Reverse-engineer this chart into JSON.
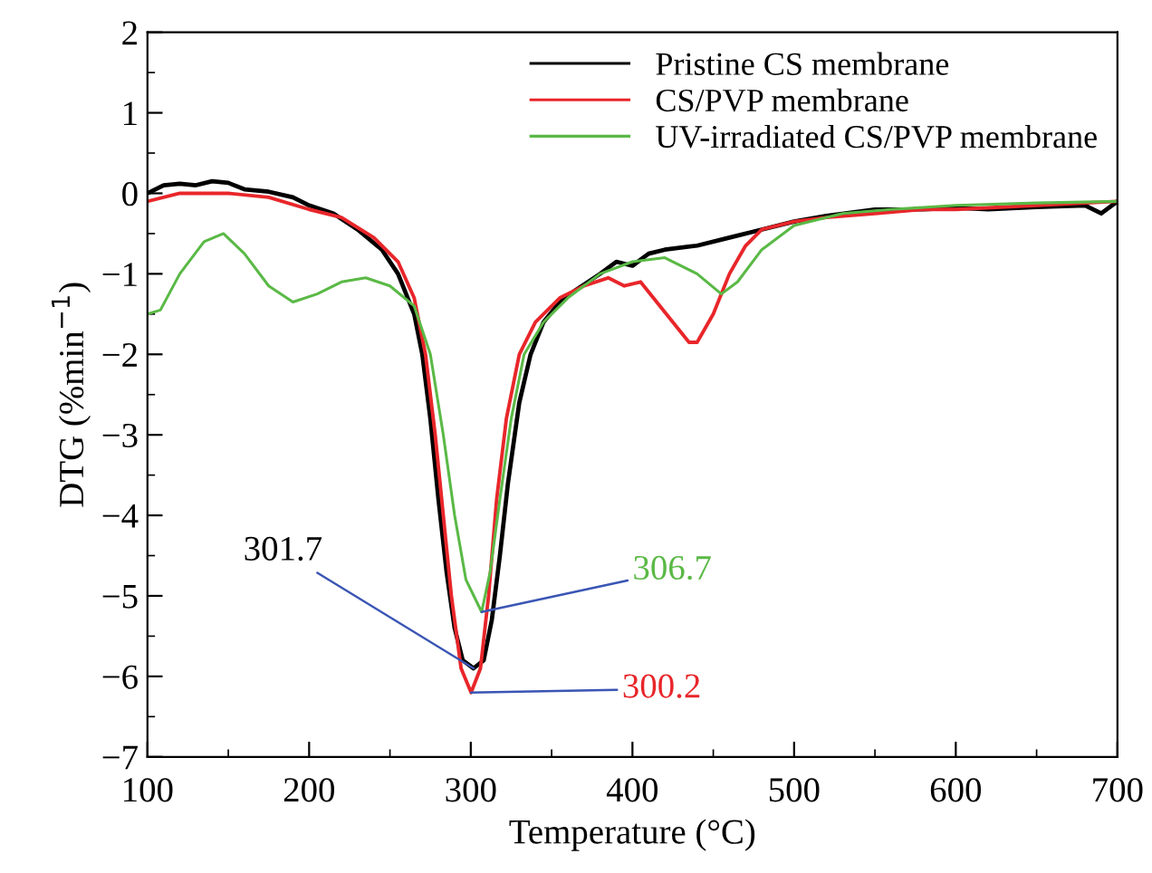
{
  "chart_data": {
    "type": "line",
    "xlabel": "Temperature (°C)",
    "ylabel": "DTG (%min$^{−1}$)",
    "xlim": [
      100,
      700
    ],
    "xticks": [
      100,
      200,
      300,
      400,
      500,
      600,
      700
    ],
    "ylim": [
      -7,
      2
    ],
    "yticks": [
      -7,
      -6,
      -5,
      -4,
      -3,
      -2,
      -1,
      0,
      1,
      2
    ],
    "grid": false,
    "legend": "top right",
    "marker": "none",
    "line_style": "solid",
    "series": [
      {
        "name": "Pristine CS membrane",
        "color": "#000000",
        "x": [
          100,
          110,
          120,
          130,
          140,
          150,
          160,
          175,
          190,
          200,
          215,
          230,
          245,
          255,
          265,
          270,
          275,
          280,
          285,
          290,
          295,
          301.7,
          308,
          313,
          318,
          323,
          330,
          337,
          345,
          355,
          365,
          380,
          390,
          400,
          410,
          420,
          440,
          460,
          480,
          500,
          520,
          550,
          580,
          600,
          620,
          650,
          680,
          690,
          700
        ],
        "values": [
          0.0,
          0.1,
          0.12,
          0.1,
          0.15,
          0.13,
          0.05,
          0.02,
          -0.05,
          -0.15,
          -0.25,
          -0.45,
          -0.7,
          -1.0,
          -1.5,
          -2.0,
          -2.8,
          -3.8,
          -4.7,
          -5.4,
          -5.8,
          -5.9,
          -5.8,
          -5.3,
          -4.5,
          -3.6,
          -2.6,
          -2.0,
          -1.6,
          -1.35,
          -1.2,
          -1.0,
          -0.85,
          -0.9,
          -0.75,
          -0.7,
          -0.65,
          -0.55,
          -0.45,
          -0.35,
          -0.28,
          -0.2,
          -0.2,
          -0.18,
          -0.2,
          -0.17,
          -0.15,
          -0.25,
          -0.1
        ]
      },
      {
        "name": "CS/PVP membrane",
        "color": "#e8262a",
        "x": [
          100,
          120,
          150,
          175,
          200,
          220,
          240,
          255,
          265,
          272,
          278,
          283,
          288,
          294,
          300.2,
          306,
          311,
          316,
          322,
          330,
          340,
          355,
          370,
          385,
          395,
          405,
          415,
          425,
          435,
          440,
          450,
          460,
          470,
          480,
          500,
          520,
          550,
          580,
          600,
          650,
          700
        ],
        "values": [
          -0.1,
          0.0,
          0.0,
          -0.05,
          -0.2,
          -0.3,
          -0.55,
          -0.85,
          -1.3,
          -2.0,
          -3.0,
          -4.0,
          -5.0,
          -5.9,
          -6.2,
          -5.9,
          -5.0,
          -3.8,
          -2.8,
          -2.0,
          -1.6,
          -1.3,
          -1.15,
          -1.05,
          -1.15,
          -1.1,
          -1.35,
          -1.6,
          -1.85,
          -1.85,
          -1.5,
          -1.0,
          -0.65,
          -0.45,
          -0.35,
          -0.3,
          -0.25,
          -0.2,
          -0.2,
          -0.15,
          -0.1
        ]
      },
      {
        "name": "UV-irradiated CS/PVP membrane",
        "color": "#5ab946",
        "x": [
          100,
          108,
          120,
          135,
          147,
          160,
          175,
          190,
          205,
          220,
          235,
          250,
          265,
          275,
          283,
          290,
          297,
          306.7,
          312,
          318,
          325,
          333,
          345,
          360,
          380,
          400,
          420,
          440,
          455,
          465,
          480,
          500,
          530,
          560,
          600,
          650,
          700
        ],
        "values": [
          -1.5,
          -1.45,
          -1.0,
          -0.6,
          -0.5,
          -0.75,
          -1.15,
          -1.35,
          -1.25,
          -1.1,
          -1.05,
          -1.15,
          -1.4,
          -2.0,
          -3.0,
          -4.0,
          -4.8,
          -5.2,
          -4.7,
          -3.8,
          -2.8,
          -2.0,
          -1.6,
          -1.3,
          -1.0,
          -0.85,
          -0.8,
          -1.0,
          -1.25,
          -1.1,
          -0.7,
          -0.4,
          -0.25,
          -0.2,
          -0.15,
          -0.12,
          -0.1
        ]
      }
    ],
    "annotations": [
      {
        "text": "301.7",
        "x": 301.7,
        "y": -5.9
      },
      {
        "text": "306.7",
        "x": 306.7,
        "y": -5.2
      },
      {
        "text": "300.2",
        "x": 300.2,
        "y": -6.2
      }
    ]
  }
}
